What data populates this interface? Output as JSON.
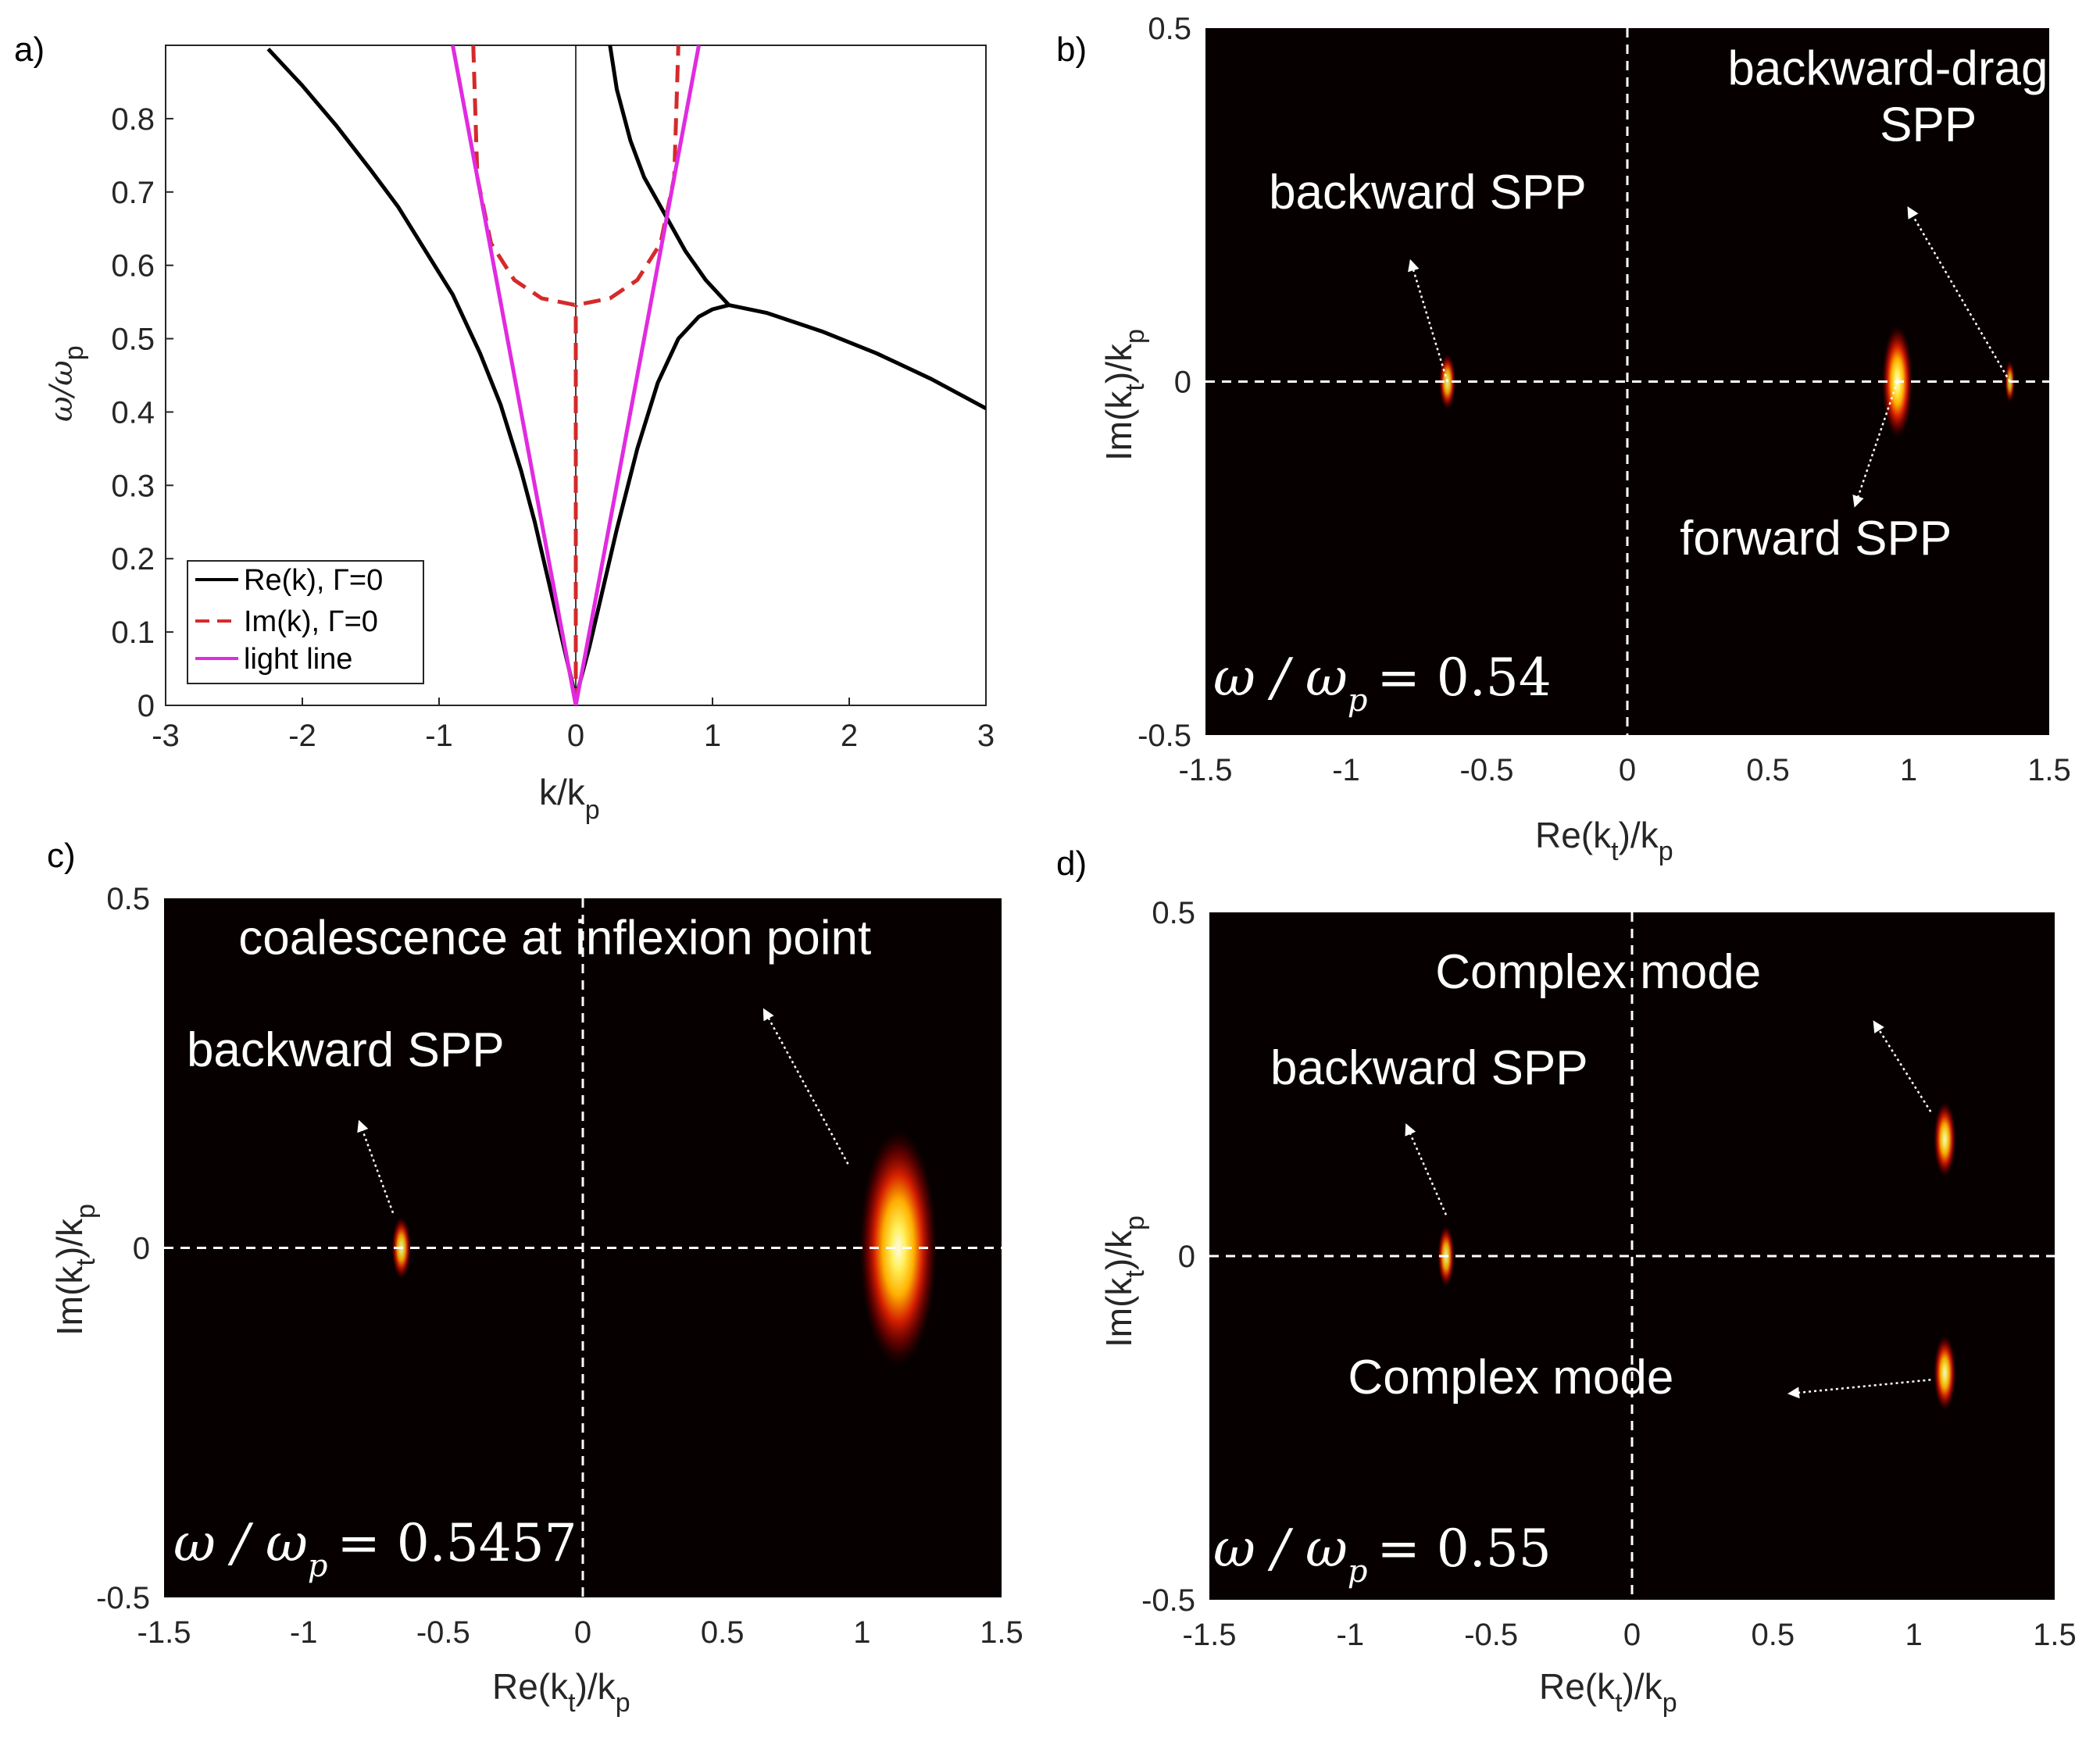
{
  "chart_data": [
    {
      "panel": "a)",
      "type": "line",
      "xlabel": "k/k",
      "xlabel_sub": "p",
      "ylabel": "ω/ω",
      "ylabel_sub": "p",
      "xlim": [
        -3,
        3
      ],
      "ylim": [
        0,
        0.9
      ],
      "xticks": [
        -3,
        -2,
        -1,
        0,
        1,
        2,
        3
      ],
      "yticks": [
        0,
        0.1,
        0.2,
        0.3,
        0.4,
        0.5,
        0.6,
        0.7,
        0.8
      ],
      "ytick_labels": [
        "0",
        "0.1",
        "0.2",
        "0.3",
        "0.4",
        "0.5",
        "0.6",
        "0.7",
        "0.8"
      ],
      "legend": [
        {
          "label": "Re(k), Γ=0",
          "color": "#000000",
          "style": "solid"
        },
        {
          "label": "Im(k), Γ=0",
          "color": "#d42a2a",
          "style": "dashed"
        },
        {
          "label": "light line",
          "color": "#e02be0",
          "style": "solid"
        }
      ],
      "legend_position": "bottom-left",
      "series": [
        {
          "name": "Re(k) backward",
          "color": "#000000",
          "style": "solid",
          "x": [
            0.0,
            -0.1,
            -0.2,
            -0.3,
            -0.4,
            -0.55,
            -0.7,
            -0.9,
            -1.1,
            -1.3,
            -1.5,
            -1.75,
            -2.0,
            -2.25
          ],
          "y": [
            0.01,
            0.09,
            0.17,
            0.25,
            0.32,
            0.41,
            0.48,
            0.56,
            0.62,
            0.68,
            0.73,
            0.79,
            0.845,
            0.895
          ]
        },
        {
          "name": "Re(k) forward lower",
          "color": "#000000",
          "style": "solid",
          "x": [
            0.0,
            0.1,
            0.2,
            0.3,
            0.45,
            0.6,
            0.75,
            0.9,
            1.0,
            1.12
          ],
          "y": [
            0.01,
            0.08,
            0.16,
            0.24,
            0.35,
            0.44,
            0.5,
            0.53,
            0.54,
            0.5457
          ]
        },
        {
          "name": "Re(k) forward upper",
          "color": "#000000",
          "style": "solid",
          "x": [
            0.25,
            0.3,
            0.4,
            0.5,
            0.65,
            0.8,
            0.95,
            1.12
          ],
          "y": [
            0.9,
            0.84,
            0.77,
            0.72,
            0.67,
            0.62,
            0.58,
            0.5457
          ]
        },
        {
          "name": "Re(k) beyond",
          "color": "#000000",
          "style": "solid",
          "x": [
            1.12,
            1.4,
            1.8,
            2.2,
            2.6,
            3.0
          ],
          "y": [
            0.5457,
            0.535,
            0.51,
            0.48,
            0.445,
            0.405
          ]
        },
        {
          "name": "Im(k) axis",
          "color": "#d42a2a",
          "style": "dashed",
          "x": [
            0.0,
            0.0
          ],
          "y": [
            0.0,
            0.5457
          ]
        },
        {
          "name": "Im(k) loop",
          "color": "#d42a2a",
          "style": "dashed",
          "x": [
            -0.75,
            -0.72,
            -0.62,
            -0.45,
            -0.25,
            0.0,
            0.25,
            0.45,
            0.62,
            0.72,
            0.75
          ],
          "y": [
            0.9,
            0.72,
            0.63,
            0.58,
            0.555,
            0.5457,
            0.555,
            0.58,
            0.63,
            0.72,
            0.9
          ]
        },
        {
          "name": "light line left",
          "color": "#e02be0",
          "style": "solid",
          "x": [
            0.0,
            -0.9
          ],
          "y": [
            0.0,
            0.9
          ]
        },
        {
          "name": "light line right",
          "color": "#e02be0",
          "style": "solid",
          "x": [
            0.0,
            0.9
          ],
          "y": [
            0.0,
            0.9
          ]
        }
      ]
    },
    {
      "panel": "b)",
      "type": "heatmap",
      "xlabel": "Re(k",
      "xlabel_sub": "t",
      "xlabel_end": ")/k",
      "xlabel_sub2": "p",
      "ylabel": "Im(k",
      "ylabel_sub": "t",
      "ylabel_end": ")/k",
      "ylabel_sub2": "p",
      "xlim": [
        -1.5,
        1.5
      ],
      "ylim": [
        -0.5,
        0.5
      ],
      "xtick_labels": [
        "-1.5",
        "-1",
        "-0.5",
        "0",
        "0.5",
        "1",
        "1.5"
      ],
      "ytick_labels": [
        "-0.5",
        "0",
        "0.5"
      ],
      "omega_ratio": "= 0.54",
      "spots": [
        {
          "x": -0.64,
          "y": 0.0,
          "rx": 0.03,
          "ry": 0.04,
          "intensity": 0.9
        },
        {
          "x": 0.96,
          "y": 0.0,
          "rx": 0.055,
          "ry": 0.08,
          "intensity": 1.0
        },
        {
          "x": 1.36,
          "y": 0.0,
          "rx": 0.018,
          "ry": 0.03,
          "intensity": 0.8
        }
      ],
      "annotations": [
        {
          "lines": [
            "backward-dragged",
            "SPP"
          ],
          "x": 1.07,
          "y": 0.42,
          "arrow_from": [
            1.36,
            0.0
          ],
          "arrow_to": [
            1.0,
            0.245
          ]
        },
        {
          "lines": [
            "backward SPP"
          ],
          "x": -0.71,
          "y": 0.245,
          "arrow_from": [
            -0.64,
            0.0
          ],
          "arrow_to": [
            -0.77,
            0.17
          ]
        },
        {
          "lines": [
            "forward SPP"
          ],
          "x": 0.67,
          "y": -0.245,
          "arrow_from": [
            0.96,
            0.0
          ],
          "arrow_to": [
            0.81,
            -0.175
          ]
        }
      ]
    },
    {
      "panel": "c)",
      "type": "heatmap",
      "xlabel": "Re(k",
      "xlabel_sub": "t",
      "xlabel_end": ")/k",
      "xlabel_sub2": "p",
      "ylabel": "Im(k",
      "ylabel_sub": "t",
      "ylabel_end": ")/k",
      "ylabel_sub2": "p",
      "xlim": [
        -1.5,
        1.5
      ],
      "ylim": [
        -0.5,
        0.5
      ],
      "xtick_labels": [
        "-1.5",
        "-1",
        "-0.5",
        "0",
        "0.5",
        "1",
        "1.5"
      ],
      "ytick_labels": [
        "-0.5",
        "0",
        "0.5"
      ],
      "omega_ratio": "= 0.5457",
      "spots": [
        {
          "x": -0.65,
          "y": 0.0,
          "rx": 0.035,
          "ry": 0.045,
          "intensity": 0.9
        },
        {
          "x": 1.13,
          "y": 0.0,
          "rx": 0.14,
          "ry": 0.17,
          "intensity": 1.0
        }
      ],
      "annotations": [
        {
          "lines": [
            "coalescence at inflexion point"
          ],
          "x": -0.1,
          "y": 0.42,
          "arrow_from": [
            0.95,
            0.12
          ],
          "arrow_to": [
            0.65,
            0.34
          ]
        },
        {
          "lines": [
            "backward SPP"
          ],
          "x": -0.85,
          "y": 0.26,
          "arrow_from": [
            -0.68,
            0.05
          ],
          "arrow_to": [
            -0.8,
            0.18
          ]
        }
      ]
    },
    {
      "panel": "d)",
      "type": "heatmap",
      "xlabel": "Re(k",
      "xlabel_sub": "t",
      "xlabel_end": ")/k",
      "xlabel_sub2": "p",
      "ylabel": "Im(k",
      "ylabel_sub": "t",
      "ylabel_end": ")/k",
      "ylabel_sub2": "p",
      "xlim": [
        -1.5,
        1.5
      ],
      "ylim": [
        -0.5,
        0.5
      ],
      "xtick_labels": [
        "-1.5",
        "-1",
        "-0.5",
        "0",
        "0.5",
        "1",
        "1.5"
      ],
      "ytick_labels": [
        "-0.5",
        "0",
        "0.5"
      ],
      "omega_ratio": "= 0.55",
      "spots": [
        {
          "x": -0.66,
          "y": 0.0,
          "rx": 0.03,
          "ry": 0.045,
          "intensity": 0.9
        },
        {
          "x": 1.11,
          "y": 0.17,
          "rx": 0.04,
          "ry": 0.055,
          "intensity": 0.95
        },
        {
          "x": 1.11,
          "y": -0.17,
          "rx": 0.04,
          "ry": 0.055,
          "intensity": 0.95
        }
      ],
      "annotations": [
        {
          "lines": [
            "Complex mode"
          ],
          "x": -0.12,
          "y": 0.39,
          "arrow_from": [
            1.06,
            0.21
          ],
          "arrow_to": [
            0.86,
            0.34
          ]
        },
        {
          "lines": [
            "backward SPP"
          ],
          "x": -0.72,
          "y": 0.25,
          "arrow_from": [
            -0.66,
            0.06
          ],
          "arrow_to": [
            -0.8,
            0.19
          ]
        },
        {
          "lines": [
            "Complex mode"
          ],
          "x": -0.43,
          "y": -0.2,
          "arrow_from": [
            1.06,
            -0.18
          ],
          "arrow_to": [
            0.56,
            -0.2
          ]
        }
      ]
    }
  ],
  "colors": {
    "re_line": "#000000",
    "im_line": "#d42a2a",
    "light_line": "#e02be0",
    "heatmap_bg": "#070000",
    "annotation": "#ffffff"
  }
}
